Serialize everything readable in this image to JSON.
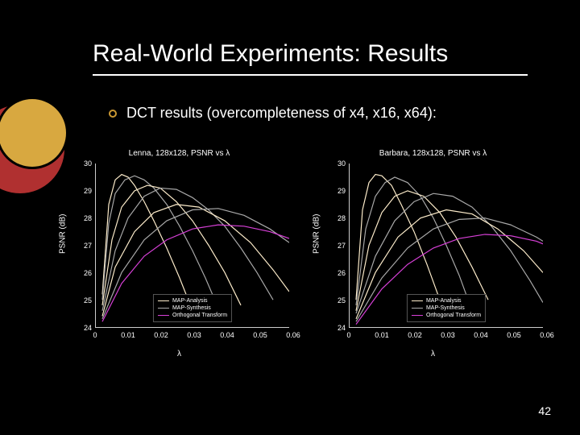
{
  "slide": {
    "title": "Real-World Experiments: Results",
    "bullet": "DCT results (overcompleteness of x4, x16, x64):",
    "number": "42"
  },
  "colors": {
    "background": "#000000",
    "text": "#ffffff",
    "accent_yellow": "#cc9933",
    "accent_red": "#b03030",
    "series_analysis": "#ffeecc",
    "series_synthesis": "#aaaaaa",
    "series_orthogonal": "#d840d8"
  },
  "charts": [
    {
      "title": "Lenna, 128x128, PSNR vs λ",
      "ylabel": "PSNR (dB)",
      "xlabel": "λ",
      "xlim": [
        0,
        0.06
      ],
      "ylim": [
        24,
        30
      ],
      "xticks": [
        0,
        0.01,
        0.02,
        0.03,
        0.04,
        0.05,
        0.06
      ],
      "yticks": [
        24,
        25,
        26,
        27,
        28,
        29,
        30
      ],
      "legend": [
        {
          "label": "MAP-Analysis",
          "color": "#ffeecc"
        },
        {
          "label": "MAP-Synthesis",
          "color": "#aaaaaa"
        },
        {
          "label": "Orthogonal Transform",
          "color": "#d840d8"
        }
      ],
      "curves": [
        {
          "color": "#ffeecc",
          "pts": [
            [
              0.002,
              25.2
            ],
            [
              0.004,
              28.5
            ],
            [
              0.006,
              29.4
            ],
            [
              0.008,
              29.6
            ],
            [
              0.01,
              29.5
            ],
            [
              0.012,
              29.2
            ],
            [
              0.015,
              28.6
            ],
            [
              0.018,
              27.9
            ],
            [
              0.022,
              26.9
            ],
            [
              0.026,
              25.8
            ],
            [
              0.03,
              24.6
            ]
          ]
        },
        {
          "color": "#aaaaaa",
          "pts": [
            [
              0.002,
              25.0
            ],
            [
              0.004,
              27.8
            ],
            [
              0.006,
              28.9
            ],
            [
              0.009,
              29.4
            ],
            [
              0.012,
              29.55
            ],
            [
              0.015,
              29.4
            ],
            [
              0.018,
              29.1
            ],
            [
              0.022,
              28.5
            ],
            [
              0.026,
              27.7
            ],
            [
              0.03,
              26.8
            ],
            [
              0.034,
              25.8
            ],
            [
              0.038,
              24.7
            ]
          ]
        },
        {
          "color": "#ffeecc",
          "pts": [
            [
              0.002,
              24.8
            ],
            [
              0.005,
              27.2
            ],
            [
              0.008,
              28.4
            ],
            [
              0.012,
              29.0
            ],
            [
              0.016,
              29.2
            ],
            [
              0.02,
              29.1
            ],
            [
              0.025,
              28.6
            ],
            [
              0.03,
              27.9
            ],
            [
              0.035,
              27.0
            ],
            [
              0.04,
              26.0
            ],
            [
              0.045,
              24.8
            ]
          ]
        },
        {
          "color": "#aaaaaa",
          "pts": [
            [
              0.002,
              24.6
            ],
            [
              0.006,
              26.8
            ],
            [
              0.01,
              28.0
            ],
            [
              0.015,
              28.8
            ],
            [
              0.02,
              29.1
            ],
            [
              0.025,
              29.05
            ],
            [
              0.03,
              28.75
            ],
            [
              0.035,
              28.3
            ],
            [
              0.04,
              27.7
            ],
            [
              0.045,
              26.9
            ],
            [
              0.05,
              26.0
            ],
            [
              0.055,
              25.0
            ]
          ]
        },
        {
          "color": "#ffeecc",
          "pts": [
            [
              0.002,
              24.4
            ],
            [
              0.006,
              26.2
            ],
            [
              0.012,
              27.5
            ],
            [
              0.018,
              28.2
            ],
            [
              0.025,
              28.5
            ],
            [
              0.032,
              28.4
            ],
            [
              0.04,
              27.9
            ],
            [
              0.048,
              27.1
            ],
            [
              0.055,
              26.1
            ],
            [
              0.06,
              25.3
            ]
          ]
        },
        {
          "color": "#aaaaaa",
          "pts": [
            [
              0.002,
              24.3
            ],
            [
              0.008,
              26.0
            ],
            [
              0.015,
              27.2
            ],
            [
              0.022,
              27.9
            ],
            [
              0.03,
              28.3
            ],
            [
              0.038,
              28.35
            ],
            [
              0.046,
              28.1
            ],
            [
              0.054,
              27.6
            ],
            [
              0.06,
              27.1
            ]
          ]
        },
        {
          "color": "#d840d8",
          "pts": [
            [
              0.002,
              24.2
            ],
            [
              0.008,
              25.6
            ],
            [
              0.015,
              26.6
            ],
            [
              0.022,
              27.2
            ],
            [
              0.03,
              27.6
            ],
            [
              0.038,
              27.75
            ],
            [
              0.046,
              27.7
            ],
            [
              0.054,
              27.5
            ],
            [
              0.06,
              27.25
            ]
          ]
        }
      ]
    },
    {
      "title": "Barbara, 128x128, PSNR vs λ",
      "ylabel": "PSNR (dB)",
      "xlabel": "λ",
      "xlim": [
        0,
        0.06
      ],
      "ylim": [
        24,
        30
      ],
      "xticks": [
        0,
        0.01,
        0.02,
        0.03,
        0.04,
        0.05,
        0.06
      ],
      "yticks": [
        24,
        25,
        26,
        27,
        28,
        29,
        30
      ],
      "legend": [
        {
          "label": "MAP-Analysis",
          "color": "#ffeecc"
        },
        {
          "label": "MAP-Synthesis",
          "color": "#aaaaaa"
        },
        {
          "label": "Orthogonal Transform",
          "color": "#d840d8"
        }
      ],
      "curves": [
        {
          "color": "#ffeecc",
          "pts": [
            [
              0.002,
              25.0
            ],
            [
              0.004,
              28.3
            ],
            [
              0.006,
              29.3
            ],
            [
              0.008,
              29.6
            ],
            [
              0.01,
              29.55
            ],
            [
              0.013,
              29.2
            ],
            [
              0.016,
              28.5
            ],
            [
              0.02,
              27.5
            ],
            [
              0.024,
              26.3
            ],
            [
              0.028,
              25.0
            ]
          ]
        },
        {
          "color": "#aaaaaa",
          "pts": [
            [
              0.002,
              24.8
            ],
            [
              0.005,
              27.6
            ],
            [
              0.008,
              28.8
            ],
            [
              0.011,
              29.3
            ],
            [
              0.014,
              29.5
            ],
            [
              0.018,
              29.3
            ],
            [
              0.022,
              28.8
            ],
            [
              0.026,
              28.0
            ],
            [
              0.03,
              27.0
            ],
            [
              0.034,
              25.9
            ],
            [
              0.038,
              24.6
            ]
          ]
        },
        {
          "color": "#ffeecc",
          "pts": [
            [
              0.002,
              24.6
            ],
            [
              0.006,
              27.0
            ],
            [
              0.01,
              28.2
            ],
            [
              0.014,
              28.8
            ],
            [
              0.018,
              29.0
            ],
            [
              0.023,
              28.8
            ],
            [
              0.028,
              28.2
            ],
            [
              0.033,
              27.3
            ],
            [
              0.038,
              26.2
            ],
            [
              0.043,
              25.0
            ]
          ]
        },
        {
          "color": "#aaaaaa",
          "pts": [
            [
              0.002,
              24.5
            ],
            [
              0.008,
              26.6
            ],
            [
              0.014,
              27.9
            ],
            [
              0.02,
              28.6
            ],
            [
              0.026,
              28.9
            ],
            [
              0.032,
              28.8
            ],
            [
              0.038,
              28.4
            ],
            [
              0.044,
              27.7
            ],
            [
              0.05,
              26.8
            ],
            [
              0.056,
              25.7
            ],
            [
              0.06,
              24.9
            ]
          ]
        },
        {
          "color": "#ffeecc",
          "pts": [
            [
              0.002,
              24.3
            ],
            [
              0.008,
              26.0
            ],
            [
              0.015,
              27.3
            ],
            [
              0.022,
              28.0
            ],
            [
              0.03,
              28.3
            ],
            [
              0.038,
              28.15
            ],
            [
              0.046,
              27.6
            ],
            [
              0.054,
              26.8
            ],
            [
              0.06,
              26.0
            ]
          ]
        },
        {
          "color": "#aaaaaa",
          "pts": [
            [
              0.002,
              24.2
            ],
            [
              0.01,
              25.8
            ],
            [
              0.018,
              26.9
            ],
            [
              0.026,
              27.6
            ],
            [
              0.034,
              27.95
            ],
            [
              0.042,
              28.0
            ],
            [
              0.05,
              27.75
            ],
            [
              0.058,
              27.3
            ],
            [
              0.06,
              27.15
            ]
          ]
        },
        {
          "color": "#d840d8",
          "pts": [
            [
              0.002,
              24.1
            ],
            [
              0.01,
              25.4
            ],
            [
              0.018,
              26.3
            ],
            [
              0.026,
              26.9
            ],
            [
              0.034,
              27.25
            ],
            [
              0.042,
              27.4
            ],
            [
              0.05,
              27.35
            ],
            [
              0.058,
              27.15
            ],
            [
              0.06,
              27.05
            ]
          ]
        }
      ]
    }
  ]
}
